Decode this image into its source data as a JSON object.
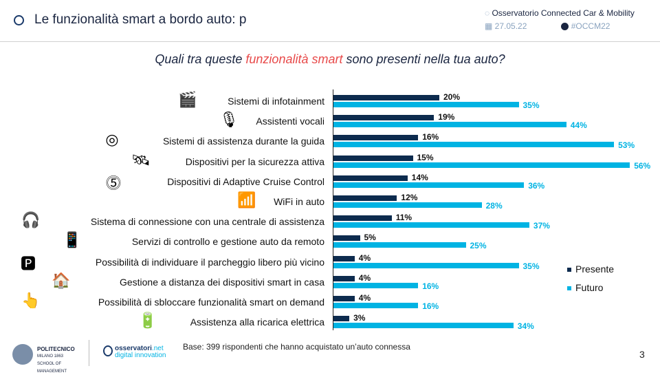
{
  "header": {
    "title": "Le funzionalità smart a bordo auto: p",
    "observatory": "Osservatorio Connected Car & Mobility",
    "date": "27.05.22",
    "hashtag": "#OCCM22"
  },
  "question": {
    "before": "Quali tra queste ",
    "highlight": "funzionalità smart",
    "after": " sono presenti nella tua auto?"
  },
  "colors": {
    "presente": "#0d2b4e",
    "futuro": "#00b3e3",
    "highlight": "#e84a4a"
  },
  "chart_data": {
    "type": "bar",
    "orientation": "horizontal",
    "title": "",
    "xlabel": "",
    "ylabel": "",
    "xlim": [
      0,
      60
    ],
    "grid": false,
    "legend": "right",
    "categories": [
      "Sistemi di infotainment",
      "Assistenti vocali",
      "Sistemi di assistenza durante la guida",
      "Dispositivi per la sicurezza attiva",
      "Dispositivi di Adaptive Cruise Control",
      "WiFi in auto",
      "Sistema di connessione con una centrale di assistenza",
      "Servizi di controllo e gestione auto da remoto",
      "Possibilità di individuare il parcheggio libero più vicino",
      "Gestione a distanza dei dispositivi smart in casa",
      "Possibilità di sbloccare funzionalità smart on demand",
      "Assistenza alla ricarica elettrica"
    ],
    "icons": [
      "clapperboard-icon",
      "microphone-icon",
      "steering-wheel-icon",
      "satellite-icon",
      "speed-limit-icon",
      "wifi-icon",
      "headset-icon",
      "remote-control-icon",
      "parking-icon",
      "smart-home-icon",
      "touch-icon",
      "charging-station-icon"
    ],
    "series": [
      {
        "name": "Presente",
        "values": [
          20,
          19,
          16,
          15,
          14,
          12,
          11,
          5,
          4,
          4,
          4,
          3
        ]
      },
      {
        "name": "Futuro",
        "values": [
          35,
          44,
          53,
          56,
          36,
          28,
          37,
          25,
          35,
          16,
          16,
          34
        ]
      }
    ]
  },
  "footer": {
    "base": "Base: 399 rispondenti che hanno acquistato un’auto connessa",
    "page": "3",
    "logo1": "POLITECNICO MILANO 1863 SCHOOL OF MANAGEMENT",
    "logo2": "osservatori.net digital innovation"
  }
}
